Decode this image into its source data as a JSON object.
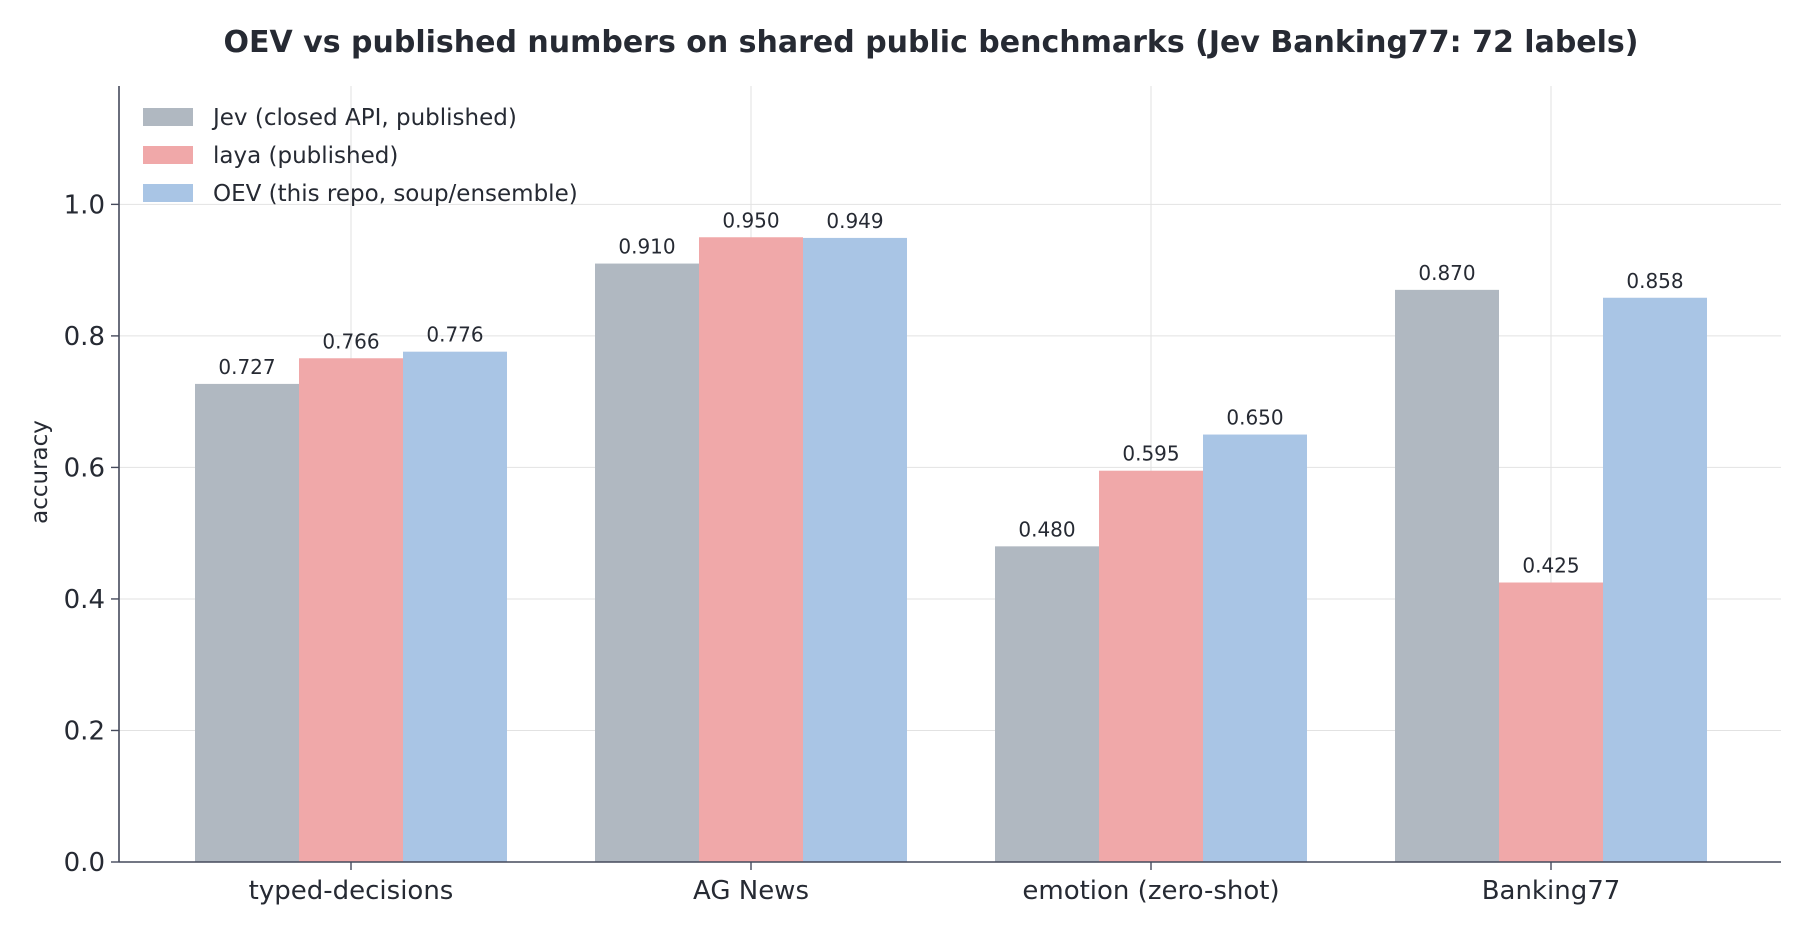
{
  "chart_data": {
    "type": "bar",
    "title": "OEV vs published numbers on shared public benchmarks (Jev Banking77: 72 labels)",
    "xlabel": "",
    "ylabel": "accuracy",
    "ylim": [
      0,
      1.18
    ],
    "yticks": [
      0.0,
      0.2,
      0.4,
      0.6,
      0.8,
      1.0
    ],
    "ytick_labels": [
      "0.0",
      "0.2",
      "0.4",
      "0.6",
      "0.8",
      "1.0"
    ],
    "grid": true,
    "legend_position": "top-left",
    "categories": [
      "typed-decisions",
      "AG News",
      "emotion (zero-shot)",
      "Banking77"
    ],
    "series": [
      {
        "name": "Jev (closed API, published)",
        "color": "#b0b8c1",
        "values": [
          0.727,
          0.91,
          0.48,
          0.87
        ],
        "labels": [
          "0.727",
          "0.910",
          "0.480",
          "0.870"
        ]
      },
      {
        "name": "laya (published)",
        "color": "#f0a8a9",
        "values": [
          0.766,
          0.95,
          0.595,
          0.425
        ],
        "labels": [
          "0.766",
          "0.950",
          "0.595",
          "0.425"
        ]
      },
      {
        "name": "OEV (this repo, soup/ensemble)",
        "color": "#a9c5e5",
        "values": [
          0.776,
          0.949,
          0.65,
          0.858
        ],
        "labels": [
          "0.776",
          "0.949",
          "0.650",
          "0.858"
        ]
      }
    ]
  }
}
